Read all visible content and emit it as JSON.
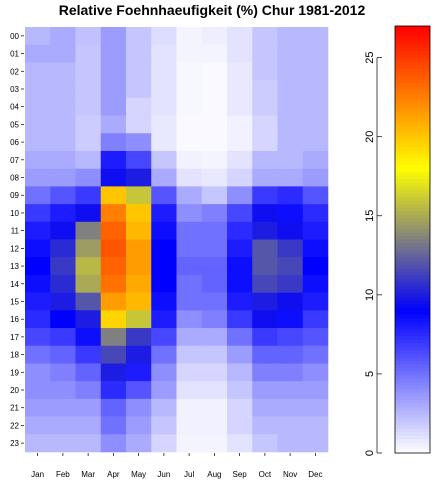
{
  "chart_data": {
    "type": "heatmap",
    "title": "Relative Foehnhaeufigkeit (%) Chur 1981-2012",
    "xlabel": "",
    "ylabel": "",
    "x": [
      "Jan",
      "Feb",
      "Mar",
      "Apr",
      "May",
      "Jun",
      "Jul",
      "Aug",
      "Sep",
      "Oct",
      "Nov",
      "Dec"
    ],
    "y": [
      "00",
      "01",
      "02",
      "03",
      "04",
      "05",
      "06",
      "07",
      "08",
      "09",
      "10",
      "11",
      "12",
      "13",
      "14",
      "15",
      "16",
      "17",
      "18",
      "19",
      "20",
      "21",
      "22",
      "23"
    ],
    "values": [
      [
        2.5,
        3.0,
        2.2,
        3.5,
        2.0,
        1.2,
        0.4,
        0.6,
        1.0,
        2.0,
        2.5,
        2.5
      ],
      [
        3.0,
        3.0,
        2.0,
        3.5,
        2.0,
        1.0,
        0.4,
        0.4,
        1.0,
        2.0,
        2.5,
        2.5
      ],
      [
        2.5,
        2.5,
        2.0,
        3.5,
        2.0,
        1.0,
        0.3,
        0.2,
        0.8,
        2.0,
        2.5,
        2.5
      ],
      [
        2.5,
        2.5,
        2.0,
        3.5,
        2.0,
        1.0,
        0.3,
        0.2,
        0.8,
        1.8,
        2.5,
        2.5
      ],
      [
        2.5,
        2.5,
        2.0,
        3.5,
        1.5,
        1.0,
        0.3,
        0.2,
        0.8,
        1.8,
        2.5,
        2.5
      ],
      [
        2.5,
        2.5,
        1.8,
        3.0,
        1.5,
        0.8,
        0.2,
        0.2,
        0.5,
        1.5,
        2.5,
        2.5
      ],
      [
        2.5,
        2.5,
        1.8,
        4.5,
        4.0,
        0.8,
        0.2,
        0.2,
        0.5,
        1.5,
        2.5,
        2.5
      ],
      [
        3.0,
        3.0,
        2.5,
        8.0,
        6.5,
        2.0,
        0.5,
        0.4,
        1.0,
        2.5,
        2.5,
        3.0
      ],
      [
        3.5,
        3.5,
        4.0,
        9.5,
        10.0,
        3.0,
        1.0,
        0.8,
        1.5,
        3.0,
        3.0,
        3.5
      ],
      [
        5.0,
        6.0,
        7.0,
        20.0,
        16.0,
        6.0,
        3.0,
        2.0,
        4.0,
        7.0,
        7.5,
        6.0
      ],
      [
        7.0,
        8.0,
        9.5,
        22.5,
        20.0,
        8.0,
        4.0,
        4.5,
        6.5,
        9.5,
        8.5,
        7.5
      ],
      [
        8.0,
        9.5,
        13.5,
        23.5,
        20.5,
        8.5,
        5.0,
        5.0,
        7.5,
        10.0,
        9.5,
        8.0
      ],
      [
        8.5,
        10.5,
        14.5,
        24.0,
        21.5,
        9.0,
        5.0,
        5.0,
        8.0,
        12.0,
        11.0,
        8.5
      ],
      [
        9.0,
        11.0,
        15.5,
        23.5,
        21.5,
        9.0,
        5.5,
        5.5,
        8.5,
        12.0,
        11.5,
        9.0
      ],
      [
        8.5,
        10.5,
        15.0,
        23.0,
        21.0,
        9.0,
        5.0,
        5.5,
        8.5,
        11.5,
        11.0,
        8.5
      ],
      [
        8.0,
        10.0,
        12.0,
        21.5,
        20.5,
        8.5,
        5.0,
        5.0,
        8.0,
        10.0,
        9.5,
        8.0
      ],
      [
        7.5,
        9.0,
        10.0,
        19.5,
        16.0,
        8.0,
        4.0,
        4.5,
        7.0,
        9.5,
        8.5,
        7.0
      ],
      [
        6.5,
        7.0,
        8.5,
        13.5,
        11.0,
        6.5,
        3.0,
        3.0,
        5.0,
        7.0,
        6.5,
        6.0
      ],
      [
        5.0,
        5.5,
        7.0,
        11.5,
        10.0,
        5.0,
        2.0,
        2.0,
        3.5,
        5.5,
        5.5,
        5.0
      ],
      [
        4.0,
        4.5,
        5.5,
        10.0,
        8.0,
        4.0,
        1.5,
        1.5,
        2.5,
        4.5,
        4.5,
        4.0
      ],
      [
        4.0,
        4.0,
        4.5,
        7.5,
        6.0,
        3.5,
        1.0,
        1.0,
        2.0,
        3.5,
        3.5,
        3.5
      ],
      [
        3.5,
        3.5,
        3.5,
        5.5,
        4.0,
        2.5,
        0.5,
        0.5,
        1.5,
        3.0,
        3.0,
        3.0
      ],
      [
        3.0,
        3.0,
        3.0,
        5.0,
        3.5,
        2.0,
        0.5,
        0.5,
        1.5,
        2.5,
        2.5,
        2.5
      ],
      [
        2.5,
        2.5,
        2.5,
        4.0,
        3.0,
        1.5,
        0.4,
        0.4,
        1.0,
        2.0,
        2.5,
        2.5
      ]
    ],
    "colorbar": {
      "range": [
        0,
        27
      ],
      "ticks": [
        "0",
        "5",
        "10",
        "15",
        "20",
        "25"
      ],
      "colors": [
        "#ffffff",
        "#0000ff",
        "#ffff00",
        "#ff0000"
      ]
    },
    "grid": false,
    "legend_position": "right"
  }
}
